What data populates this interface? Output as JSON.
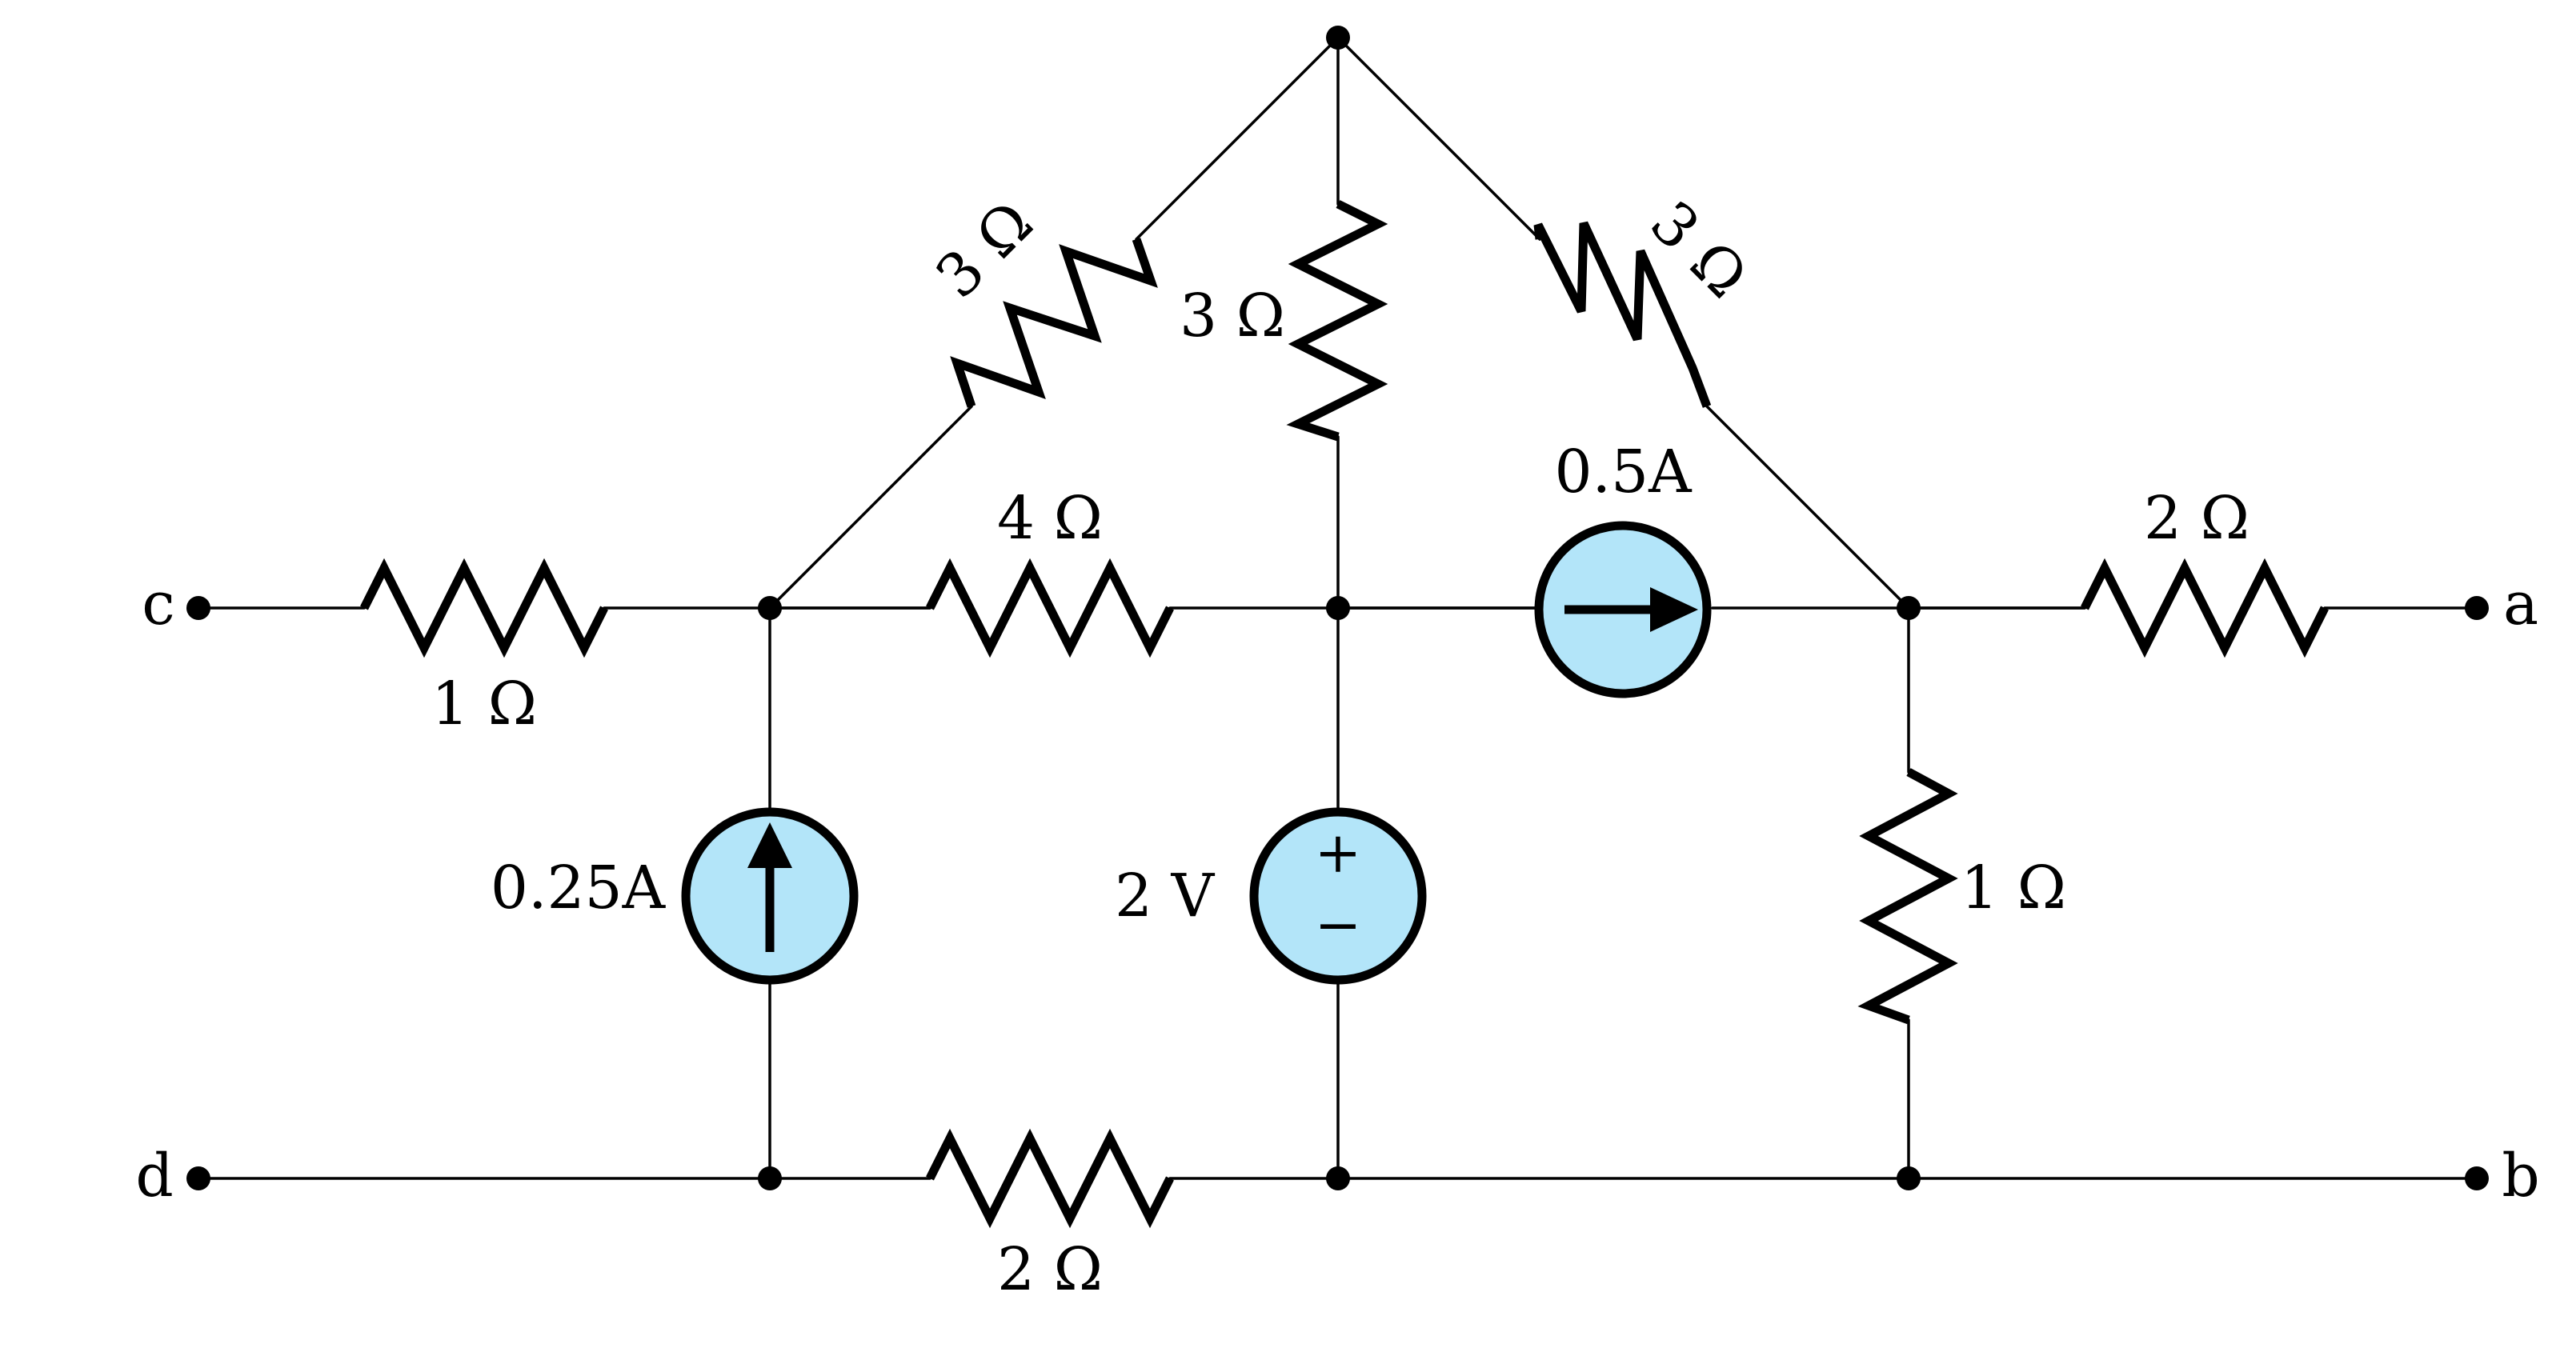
{
  "terminals": {
    "a": "a",
    "b": "b",
    "c": "c",
    "d": "d"
  },
  "resistors": {
    "r_c": "1 Ω",
    "r_4": "4 Ω",
    "r_a": "2 Ω",
    "r_right_vertical": "1 Ω",
    "r_bottom": "2 Ω",
    "r_top_left_diagonal": "3 Ω",
    "r_top_middle": "3 Ω",
    "r_top_right_diagonal": "3 Ω"
  },
  "sources": {
    "current_left": "0.25A",
    "current_middle": "0.5A",
    "voltage": "2 V",
    "voltage_plus": "+",
    "voltage_minus": "−"
  },
  "colors": {
    "source_fill": "#b3e5f9",
    "stroke": "#000000"
  }
}
